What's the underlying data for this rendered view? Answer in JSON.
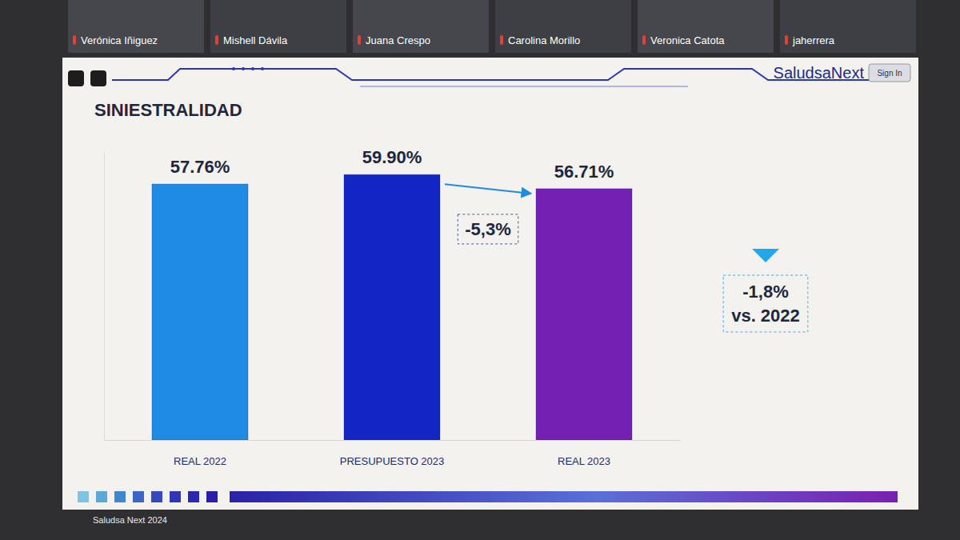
{
  "meeting": {
    "participants": [
      "Verónica Iñiguez",
      "Mishell Dávila",
      "Juana Crespo",
      "Carolina Morillo",
      "Veronica Catota",
      "jaherrera"
    ]
  },
  "slide": {
    "brand": "SaludsaNext",
    "button": "Sign In",
    "footer": "Saludsa Next 2024"
  },
  "chart_data": {
    "type": "bar",
    "title": "SINIESTRALIDAD",
    "categories": [
      "REAL 2022",
      "PRESUPUESTO 2023",
      "REAL 2023"
    ],
    "values": [
      57.76,
      59.9,
      56.71
    ],
    "value_labels": [
      "57.76%",
      "59.90%",
      "56.71%"
    ],
    "colors": [
      "#1f8be3",
      "#1226c4",
      "#7420b2"
    ],
    "ylim": [
      0,
      65
    ],
    "data_labels": true,
    "grid": false,
    "tick_labels": "x",
    "annotations": [
      "-5,3%",
      "-1,8% vs. 2022"
    ]
  }
}
